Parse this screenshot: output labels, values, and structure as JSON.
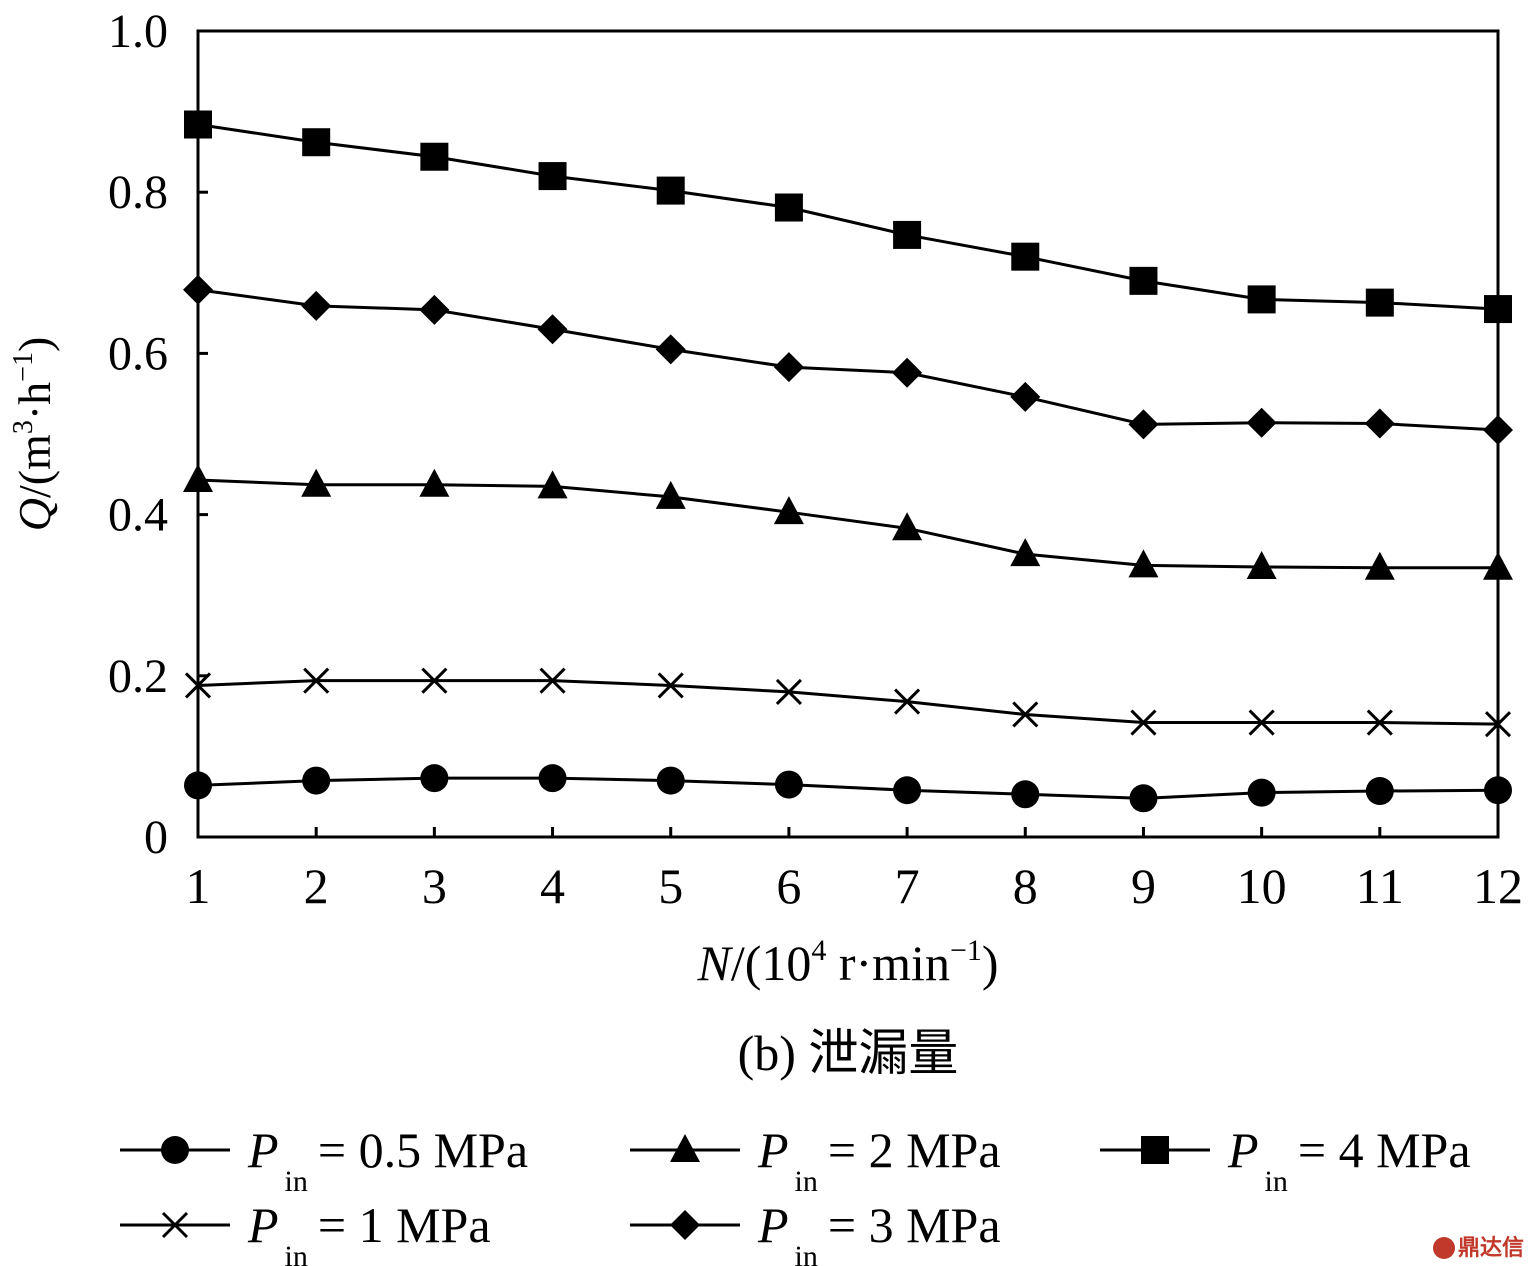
{
  "chart_data": {
    "type": "line",
    "x": [
      1,
      2,
      3,
      4,
      5,
      6,
      7,
      8,
      9,
      10,
      11,
      12
    ],
    "xlabel": {
      "var": "N",
      "rest": "/(10",
      "sup1": "4",
      "mid": " r·min",
      "sup2": "−1",
      "end": ")"
    },
    "ylabel": {
      "var": "Q",
      "rest": "/(m",
      "sup1": "3",
      "mid": "·h",
      "sup2": "−1",
      "end": ")"
    },
    "xlim": [
      1,
      12
    ],
    "ylim": [
      0,
      1.0
    ],
    "yticks": [
      "0",
      "0.2",
      "0.4",
      "0.6",
      "0.8",
      "1.0"
    ],
    "ytick_values": [
      0,
      0.2,
      0.4,
      0.6,
      0.8,
      1.0
    ],
    "xticks": [
      "1",
      "2",
      "3",
      "4",
      "5",
      "6",
      "7",
      "8",
      "9",
      "10",
      "11",
      "12"
    ],
    "grid": false,
    "caption": "(b) 泄漏量",
    "series": [
      {
        "name": "= 0.5 MPa",
        "marker": "circle",
        "values": [
          0.064,
          0.07,
          0.073,
          0.073,
          0.07,
          0.065,
          0.058,
          0.053,
          0.048,
          0.055,
          0.057,
          0.058
        ]
      },
      {
        "name": "= 1 MPa",
        "marker": "x",
        "values": [
          0.188,
          0.194,
          0.194,
          0.194,
          0.188,
          0.18,
          0.168,
          0.152,
          0.142,
          0.142,
          0.142,
          0.14
        ]
      },
      {
        "name": "= 2 MPa",
        "marker": "triangle",
        "values": [
          0.443,
          0.437,
          0.437,
          0.435,
          0.422,
          0.403,
          0.383,
          0.351,
          0.337,
          0.335,
          0.334,
          0.334
        ]
      },
      {
        "name": "= 3 MPa",
        "marker": "diamond",
        "values": [
          0.679,
          0.659,
          0.654,
          0.63,
          0.605,
          0.583,
          0.576,
          0.546,
          0.512,
          0.514,
          0.513,
          0.505
        ]
      },
      {
        "name": "= 4 MPa",
        "marker": "square",
        "values": [
          0.884,
          0.862,
          0.844,
          0.82,
          0.802,
          0.781,
          0.747,
          0.72,
          0.69,
          0.667,
          0.663,
          0.655
        ]
      }
    ],
    "legend_layout": "below",
    "legend_prefix": {
      "var": "P",
      "sub": "in"
    }
  },
  "watermark": {
    "text": "鼎达信",
    "color": "#c0392b"
  }
}
